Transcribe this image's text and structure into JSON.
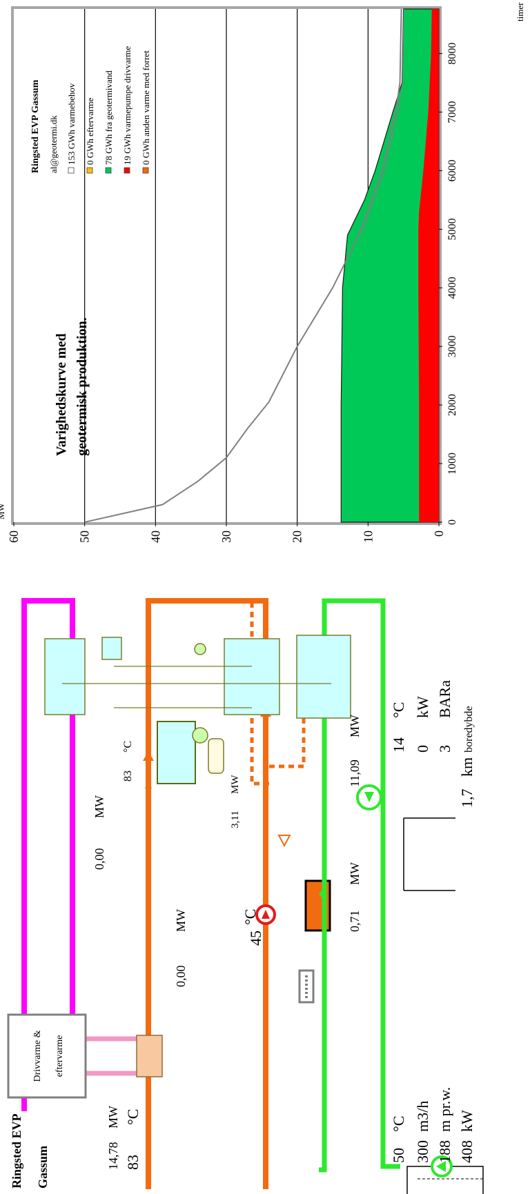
{
  "schematic": {
    "title_line1": "Ringsted EVP",
    "title_line2": "Gassum",
    "supply": {
      "power": "14,78",
      "power_unit": "MW",
      "temp": "83",
      "temp_unit": "°C"
    },
    "return_temp": {
      "value": "45",
      "unit": "°C"
    },
    "boiler_box": {
      "line1": "Drivvarme &",
      "line2": "eftervarme"
    },
    "aftertreat_power": {
      "value": "0,00",
      "unit": "MW"
    },
    "drive_power": {
      "value": "0,00",
      "unit": "MW"
    },
    "hp_outlet_temp": {
      "value": "83",
      "unit": "°C"
    },
    "hp_power": {
      "value": "3,11",
      "unit": "MW"
    },
    "hx_power": {
      "value": "0,71",
      "unit": "MW"
    },
    "geo_power": {
      "value": "11,09",
      "unit": "MW"
    },
    "well": [
      {
        "value": "50",
        "unit": "°C"
      },
      {
        "value": "300",
        "unit": "m3/h"
      },
      {
        "value": "188",
        "unit": "m pr.w."
      },
      {
        "value": "408",
        "unit": "kW"
      }
    ],
    "injection": [
      {
        "value": "14",
        "unit": "°C"
      },
      {
        "value": "0",
        "unit": "kW"
      },
      {
        "value": "3",
        "unit": "BARa"
      }
    ],
    "depth": {
      "value": "1,7",
      "unit": "km",
      "suffix": "boredybde"
    }
  },
  "chart_data": {
    "type": "area",
    "title_line1": "Varighedskurve med",
    "title_line2": "geotermisk produktion.",
    "ylabel": "MW",
    "xlabel": "timer",
    "ylim": [
      0,
      60
    ],
    "xlim": [
      0,
      8760
    ],
    "yticks": [
      "0",
      "10",
      "20",
      "30",
      "40",
      "50",
      "60"
    ],
    "xticks": [
      "0",
      "1000",
      "2000",
      "3000",
      "4000",
      "5000",
      "6000",
      "7000",
      "8000"
    ],
    "grid": "horizontal",
    "legend_position": "top-right",
    "legend": {
      "header1": "Ringsted EVP Gassum",
      "header2": "al@geotermi.dk",
      "items": [
        {
          "label": "153 GWh varmebehov",
          "color": "#ffffff"
        },
        {
          "label": "0 GWh eftervarme",
          "color": "#ffc000"
        },
        {
          "label": "78 GWh fra geotermivand",
          "color": "#00c957"
        },
        {
          "label": "19 GWh varmepumpe drivvarme",
          "color": "#ff0000"
        },
        {
          "label": "0 GWh anden varme med forret",
          "color": "#ff6600"
        }
      ]
    },
    "series": [
      {
        "name": "153 GWh varmebehov",
        "color": "#808080",
        "x": [
          0,
          300,
          700,
          1000,
          1100,
          1600,
          2050,
          3000,
          4000,
          4900,
          5500,
          6000,
          7000,
          7500,
          8760
        ],
        "values": [
          50,
          39,
          34,
          31,
          30,
          27,
          24,
          20,
          15,
          11.3,
          9.5,
          8,
          6.1,
          5.5,
          5.3
        ]
      },
      {
        "name": "78 GWh fra geotermivand",
        "color": "#00c957",
        "x": [
          0,
          2000,
          3000,
          4000,
          4900,
          5500,
          6000,
          7000,
          7500,
          8760
        ],
        "values": [
          13.8,
          13.8,
          13.7,
          13.6,
          12.9,
          10.5,
          9.0,
          6.5,
          5.2,
          5.0
        ]
      },
      {
        "name": "19 GWh varmepumpe drivvarme",
        "color": "#ff0000",
        "x": [
          0,
          2000,
          4000,
          5000,
          5300,
          6000,
          7000,
          8000,
          8760
        ],
        "values": [
          2.8,
          2.8,
          2.9,
          2.9,
          2.8,
          2.2,
          1.5,
          1.1,
          1.0
        ]
      }
    ]
  }
}
